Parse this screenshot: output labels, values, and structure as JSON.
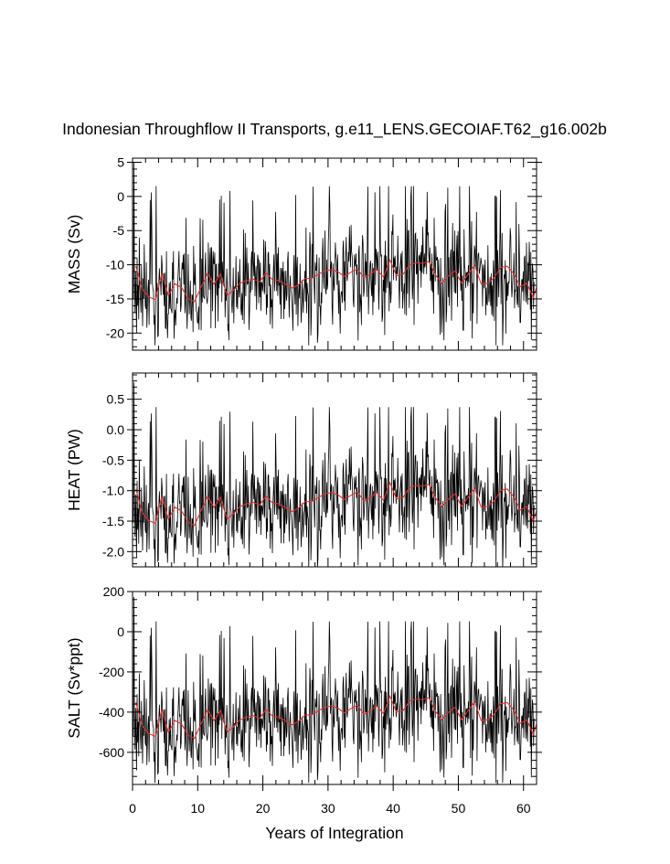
{
  "title": "Indonesian Throughflow II Transports, g.e11_LENS.GECOIAF.T62_g16.002b",
  "chart_data": {
    "type": "line",
    "title": "Indonesian Throughflow II Transports, g.e11_LENS.GECOIAF.T62_g16.002b",
    "xlabel": "Years of Integration",
    "xlim": [
      0,
      62
    ],
    "x_ticks": [
      0,
      10,
      20,
      30,
      40,
      50,
      60
    ],
    "x_tick_labels": [
      "0",
      "10",
      "20",
      "30",
      "40",
      "50",
      "60"
    ],
    "grid": false,
    "series_legend": {
      "monthly": "black thin line (monthly values)",
      "annual_mean": "red line (annual mean)"
    },
    "panels": [
      {
        "name": "mass",
        "ylabel": "MASS (Sv)",
        "ylim": [
          -22.5,
          5.6
        ],
        "y_ticks": [
          5,
          0,
          -5,
          -10,
          -15,
          -20
        ],
        "y_tick_labels": [
          "5",
          "0",
          "-5",
          "-10",
          "-15",
          "-20"
        ],
        "scale": 1,
        "offset": 0
      },
      {
        "name": "heat",
        "ylabel": "HEAT (PW)",
        "ylim": [
          -2.25,
          0.93
        ],
        "y_ticks": [
          0.5,
          0.0,
          -0.5,
          -1.0,
          -1.5,
          -2.0
        ],
        "y_tick_labels": [
          "0.5",
          "0.0",
          "-0.5",
          "-1.0",
          "-1.5",
          "-2.0"
        ],
        "scale": 0.115,
        "offset": 0.2
      },
      {
        "name": "salt",
        "ylabel": "SALT (Sv*ppt)",
        "ylim": [
          -760,
          200
        ],
        "y_ticks": [
          200,
          0,
          -200,
          -400,
          -600
        ],
        "y_tick_labels": [
          "200",
          "0",
          "-200",
          "-400",
          "-600"
        ],
        "scale": 34.5,
        "offset": 0
      }
    ],
    "annual_mean_mass_sv": [
      -10.2,
      -13.6,
      -14.7,
      -15.1,
      -11.3,
      -14.5,
      -12.8,
      -13.3,
      -14.9,
      -15.4,
      -13.3,
      -11.3,
      -12.8,
      -11.4,
      -14.5,
      -13.7,
      -12.7,
      -12.3,
      -12.1,
      -12.5,
      -11.2,
      -12.2,
      -12.3,
      -12.9,
      -13.4,
      -12.9,
      -12.0,
      -12.0,
      -11.4,
      -10.9,
      -10.7,
      -11.0,
      -11.7,
      -11.1,
      -10.6,
      -11.9,
      -11.4,
      -10.7,
      -11.8,
      -9.3,
      -11.6,
      -11.4,
      -10.0,
      -9.7,
      -9.8,
      -9.5,
      -11.5,
      -12.7,
      -11.6,
      -10.9,
      -12.7,
      -11.4,
      -10.1,
      -12.8,
      -12.7,
      -11.9,
      -10.4,
      -10.2,
      -11.3,
      -13.2,
      -12.7,
      -14.8,
      -11.8
    ],
    "monthly_mass_sv_sample": [
      -13,
      -15,
      5,
      -12,
      -17,
      -11,
      -15,
      -20,
      -9,
      -16,
      -13,
      -18,
      -6,
      -13,
      -15,
      -17,
      -10,
      -14,
      -19,
      -12,
      -15,
      -7,
      -13,
      -16
    ],
    "colors": {
      "monthly": "#000000",
      "annual_mean": "#e0302e",
      "frame": "#000000"
    }
  }
}
